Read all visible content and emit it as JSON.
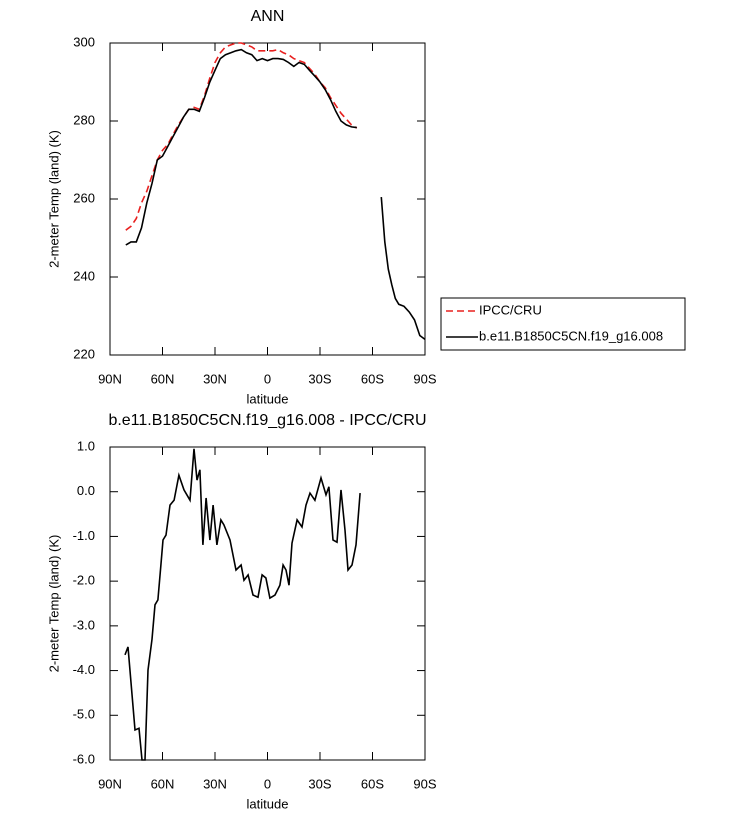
{
  "chart_data": [
    {
      "type": "line",
      "title": "ANN",
      "xlabel": "latitude",
      "ylabel": "2-meter Temp (land) (K)",
      "xlim": [
        90,
        -90
      ],
      "ylim": [
        220,
        300
      ],
      "xticks": [
        {
          "value": 90,
          "label": "90N"
        },
        {
          "value": 60,
          "label": "60N"
        },
        {
          "value": 30,
          "label": "30N"
        },
        0,
        {
          "value": -30,
          "label": "30S"
        },
        {
          "value": -60,
          "label": "60S"
        },
        {
          "value": -90,
          "label": "90S"
        }
      ],
      "yticks": [
        220,
        240,
        260,
        280,
        300
      ],
      "x": [
        81,
        78,
        75,
        72,
        69,
        66,
        63,
        60,
        57,
        54,
        51,
        48,
        45,
        42,
        39,
        36,
        33,
        30,
        27,
        24,
        21,
        18,
        15,
        12,
        9,
        6,
        3,
        0,
        -3,
        -6,
        -9,
        -12,
        -15,
        -18,
        -21,
        -24,
        -27,
        -30,
        -33,
        -36,
        -39,
        -42,
        -45,
        -48,
        -51,
        -58,
        -65,
        -67,
        -69,
        -71,
        -73,
        -75,
        -78,
        -81,
        -84,
        -87,
        -90
      ],
      "series": [
        {
          "name": "IPCC/CRU",
          "color": "#e8201f",
          "dashed": true,
          "values": [
            252,
            253,
            255,
            259,
            262,
            266,
            270,
            272.5,
            274,
            276.5,
            279,
            281,
            283,
            283.5,
            283,
            286.5,
            291,
            295,
            297.5,
            299,
            299.5,
            300,
            300,
            299.5,
            299,
            298,
            298,
            298,
            298,
            298.3,
            297.5,
            297,
            296,
            295.5,
            295,
            293.5,
            292,
            290,
            288.5,
            286,
            284,
            282,
            280.5,
            279,
            278.2,
            null,
            null,
            null,
            null,
            null,
            null,
            null,
            null,
            null,
            null,
            null,
            null
          ]
        },
        {
          "name": "b.e11.B1850C5CN.f19_g16.008",
          "color": "#000000",
          "dashed": false,
          "values": [
            248.2,
            249,
            249,
            252.6,
            259,
            264,
            270,
            271,
            273.5,
            276,
            278.5,
            281,
            283,
            283,
            282.5,
            286,
            290,
            293,
            296,
            297,
            297.5,
            298,
            298.3,
            297.5,
            297,
            295.5,
            296,
            295.5,
            296,
            296,
            295.8,
            295,
            294,
            295,
            294.5,
            293,
            291.5,
            290,
            288,
            285.5,
            282.5,
            280,
            279,
            278.5,
            278.3,
            null,
            260.5,
            249,
            242,
            238,
            234.5,
            233,
            232.5,
            231,
            229,
            225,
            224
          ]
        }
      ]
    },
    {
      "type": "line",
      "title": "b.e11.B1850C5CN.f19_g16.008 - IPCC/CRU",
      "xlabel": "latitude",
      "ylabel": "2-meter Temp (land) (K)",
      "xlim": [
        90,
        -90
      ],
      "ylim": [
        -6,
        1
      ],
      "xticks": [
        {
          "value": 90,
          "label": "90N"
        },
        {
          "value": 60,
          "label": "60N"
        },
        {
          "value": 30,
          "label": "30N"
        },
        0,
        {
          "value": -30,
          "label": "30S"
        },
        {
          "value": -60,
          "label": "60S"
        },
        {
          "value": -90,
          "label": "90S"
        }
      ],
      "yticks": [
        {
          "value": 1,
          "label": "1.0"
        },
        {
          "value": 0,
          "label": "0.0"
        },
        {
          "value": -1,
          "label": "-1.0"
        },
        {
          "value": -2,
          "label": "-2.0"
        },
        {
          "value": -3,
          "label": "-3.0"
        },
        {
          "value": -4,
          "label": "-4.0"
        },
        {
          "value": -5,
          "label": "-5.0"
        },
        {
          "value": -6,
          "label": "-6.0"
        }
      ],
      "color": "#000000",
      "x": [
        81.4,
        79.7,
        75.7,
        73.4,
        71.7,
        70,
        68.3,
        66,
        64.3,
        62.6,
        60.9,
        59.7,
        58,
        55.7,
        53.4,
        50.6,
        47.7,
        44.3,
        42,
        40.3,
        38.6,
        36.9,
        35.1,
        32.9,
        31.1,
        28.9,
        26.6,
        24.9,
        21.4,
        18,
        15.1,
        13.4,
        11.1,
        8.3,
        5.4,
        3.1,
        0.9,
        -1.4,
        -4.3,
        -7.1,
        -8.9,
        -10.6,
        -12.3,
        -14,
        -16.9,
        -19.7,
        -22,
        -24.3,
        -27.1,
        -30.6,
        -33.4,
        -35.1,
        -37.4,
        -39.7,
        -42,
        -44.3,
        -46,
        -48.3,
        -50.6,
        -52.9
      ],
      "values": [
        -3.65,
        -3.47,
        -5.33,
        -5.29,
        -6,
        -6,
        -3.99,
        -3.3,
        -2.53,
        -2.42,
        -1.64,
        -1.08,
        -0.97,
        -0.3,
        -0.19,
        0.37,
        0.04,
        -0.19,
        0.96,
        0.26,
        0.49,
        -1.19,
        -0.14,
        -1.08,
        -0.3,
        -1.19,
        -0.63,
        -0.74,
        -1.08,
        -1.75,
        -1.64,
        -1.98,
        -1.86,
        -2.31,
        -2.36,
        -1.86,
        -1.93,
        -2.38,
        -2.31,
        -2.09,
        -1.64,
        -1.75,
        -2.09,
        -1.15,
        -0.63,
        -0.79,
        -0.3,
        -0.03,
        -0.19,
        0.31,
        -0.07,
        0.11,
        -1.08,
        -1.13,
        0.04,
        -0.86,
        -1.75,
        -1.64,
        -1.19,
        -0.03
      ]
    }
  ]
}
